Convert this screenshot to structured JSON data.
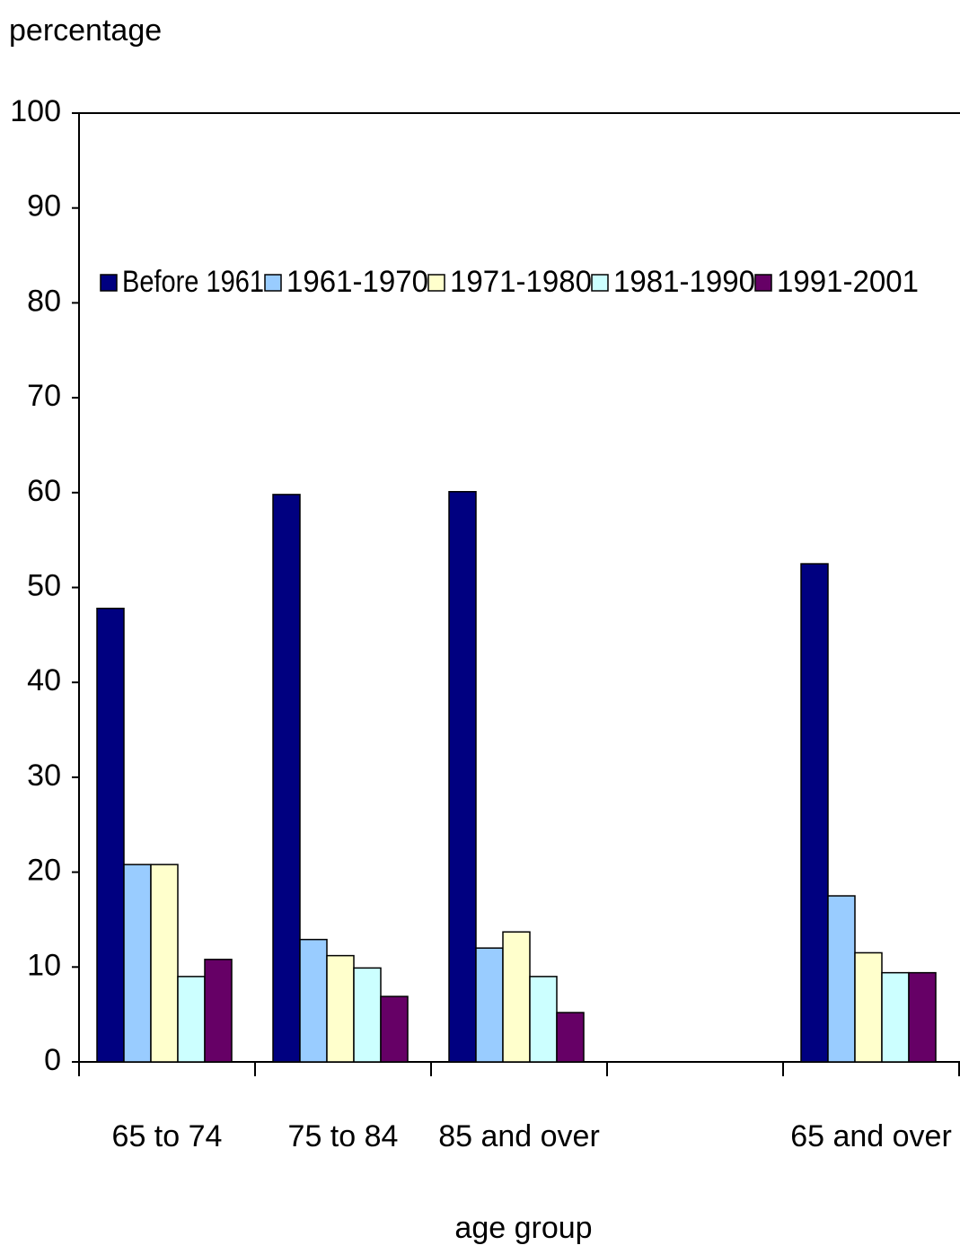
{
  "chart_data": {
    "type": "bar",
    "y_label": "percentage",
    "x_label": "age group",
    "categories": [
      "65 to 74",
      "75 to 84",
      "85 and over",
      null,
      "65 and over"
    ],
    "series": [
      {
        "name": "Before 1961",
        "color": "#000080",
        "values": [
          47.8,
          59.8,
          60.1,
          null,
          52.5
        ]
      },
      {
        "name": "1961-1970",
        "color": "#99ccff",
        "values": [
          20.8,
          12.9,
          12,
          null,
          17.5
        ]
      },
      {
        "name": "1971-1980",
        "color": "#ffffcc",
        "values": [
          20.8,
          11.2,
          13.7,
          null,
          11.5
        ]
      },
      {
        "name": "1981-1990",
        "color": "#ccffff",
        "values": [
          9,
          9.9,
          9,
          null,
          9.4
        ]
      },
      {
        "name": "1991-2001",
        "color": "#660066",
        "values": [
          10.8,
          6.9,
          5.2,
          null,
          9.4
        ]
      }
    ],
    "ylim": [
      0,
      100
    ],
    "yticks": [
      0,
      10,
      20,
      30,
      40,
      50,
      60,
      70,
      80,
      90,
      100
    ]
  }
}
